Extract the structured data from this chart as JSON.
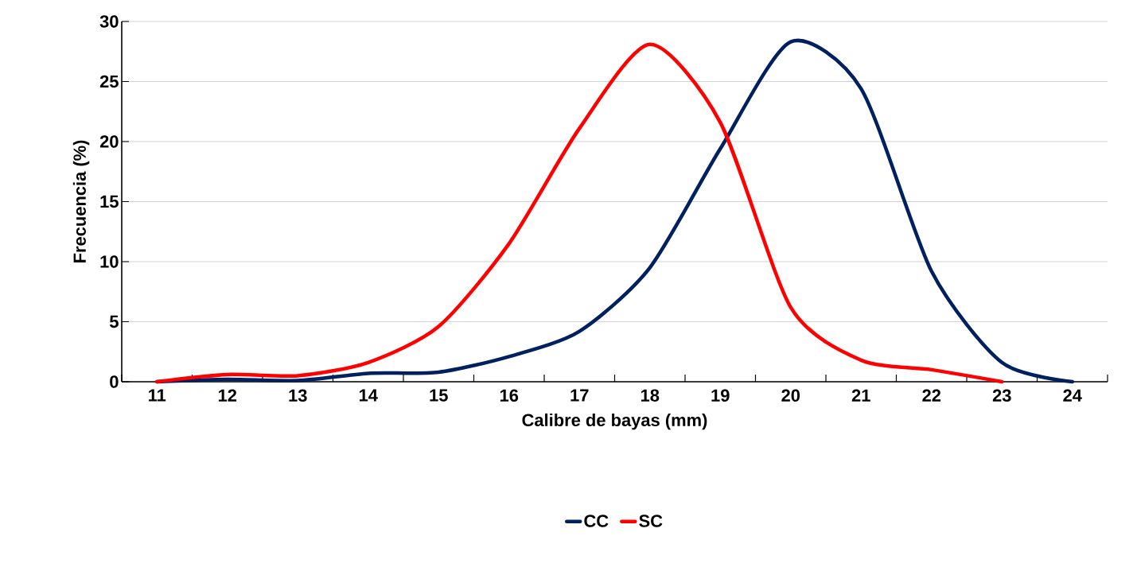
{
  "chart_data": {
    "type": "line",
    "xlabel": "Calibre de bayas (mm)",
    "ylabel": "Frecuencia (%)",
    "categories": [
      "11",
      "12",
      "13",
      "14",
      "15",
      "16",
      "17",
      "18",
      "19",
      "20",
      "21",
      "22",
      "23",
      "24"
    ],
    "series": [
      {
        "name": "CC",
        "color": "#002060",
        "values": [
          0,
          0.2,
          0.1,
          0.7,
          0.8,
          2.1,
          4.2,
          9.5,
          19.4,
          28.3,
          24.4,
          9.2,
          1.6,
          0
        ]
      },
      {
        "name": "SC",
        "color": "#ff0000",
        "values": [
          0,
          0.6,
          0.5,
          1.6,
          4.6,
          11.5,
          21.1,
          28.1,
          21.6,
          6.2,
          1.8,
          1.0,
          0,
          null
        ]
      }
    ],
    "ylim": [
      0,
      30
    ],
    "yticks": [
      0,
      5,
      10,
      15,
      20,
      25,
      30
    ],
    "grid": "y",
    "legend": "bottom",
    "marker": "none",
    "line_style": "solid"
  }
}
